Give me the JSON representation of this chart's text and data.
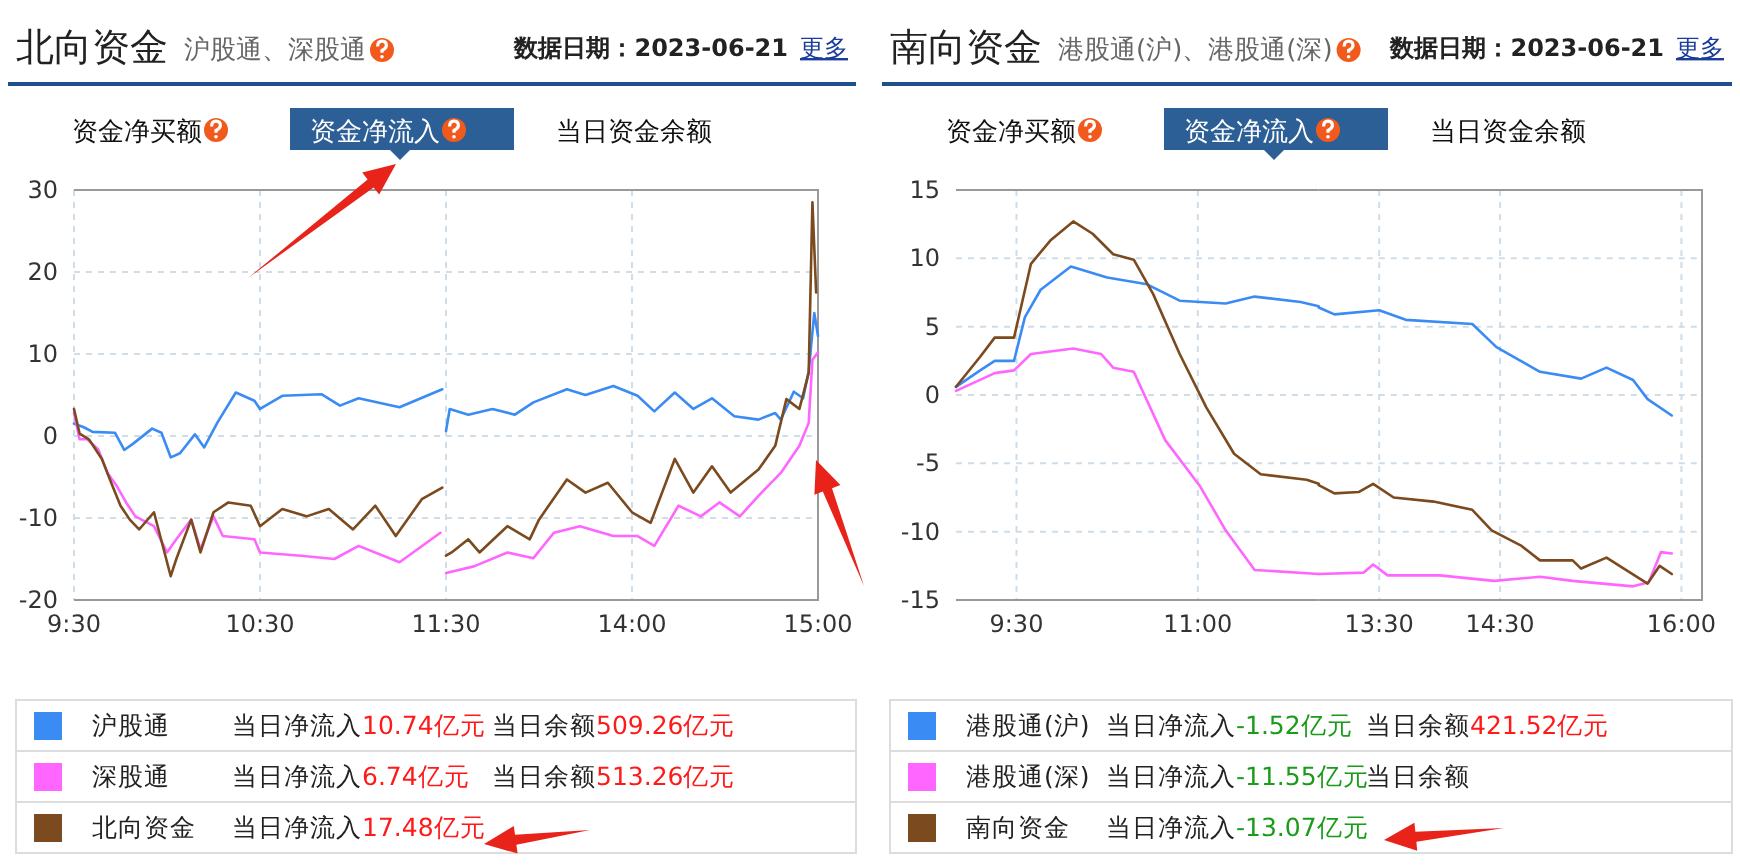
{
  "chart_data": [
    {
      "type": "line",
      "title": "北向资金",
      "subtitle": "沪股通、深股通",
      "annotations": [
        "数据日期：2023-06-21",
        "更多",
        "资金净买额",
        "资金净流入",
        "当日资金余额",
        "当日净流入10.74亿元",
        "当日余额509.26亿元",
        "当日净流入6.74亿元",
        "当日余额513.26亿元",
        "当日净流入17.48亿元"
      ],
      "xlim": [
        9.5,
        11.5
      ],
      "xticks": [
        {
          "value": 9.5,
          "label": "9:30"
        },
        {
          "value": 10.5,
          "label": "10:30"
        },
        {
          "value": 11.5,
          "label": "11:30"
        }
      ],
      "ylim": [
        -20,
        30
      ],
      "yticks": [
        -20,
        -10,
        0,
        10,
        20,
        30
      ],
      "grid": true,
      "legend": "bottom",
      "marker": "none",
      "line_style": "solid",
      "series": [
        {
          "name": "沪股通",
          "color": "#3b8bf5",
          "x": [
            9.5,
            9.55,
            9.6,
            9.72,
            9.77,
            9.82,
            9.92,
            9.97,
            10.02,
            10.07,
            10.15,
            10.2,
            10.27,
            10.37,
            10.47,
            10.5,
            10.62,
            10.83,
            10.93,
            11.03,
            11.25,
            11.48
          ],
          "values": [
            1.5,
            1.1,
            0.5,
            0.4,
            -1.7,
            -0.9,
            0.9,
            0.4,
            -2.6,
            -2.1,
            0.2,
            -1.4,
            1.6,
            5.3,
            4.3,
            3.3,
            4.9,
            5.1,
            3.7,
            4.6,
            3.5,
            5.7
          ]
        },
        {
          "name": "深股通",
          "color": "#ff66ff",
          "x": [
            9.5,
            9.53,
            9.57,
            9.63,
            9.68,
            9.73,
            9.78,
            9.83,
            9.93,
            10.0,
            10.05,
            10.13,
            10.18,
            10.25,
            10.3,
            10.47,
            10.5,
            10.72,
            10.9,
            11.03,
            11.25,
            11.47
          ],
          "values": [
            2.8,
            -0.4,
            -0.4,
            -1.6,
            -4.5,
            -6.1,
            -8.1,
            -9.8,
            -11,
            -14.2,
            -12.6,
            -10.2,
            -13.8,
            -9.8,
            -12.2,
            -12.6,
            -14.2,
            -14.6,
            -15.0,
            -13.4,
            -15.4,
            -11.8
          ]
        },
        {
          "name": "北向资金",
          "color": "#7b4a1e",
          "x": [
            9.5,
            9.53,
            9.58,
            9.65,
            9.7,
            9.75,
            9.8,
            9.85,
            9.93,
            10.02,
            10.05,
            10.13,
            10.18,
            10.25,
            10.33,
            10.45,
            10.5,
            10.62,
            10.75,
            10.87,
            11.0,
            11.12,
            11.23,
            11.37,
            11.48
          ],
          "values": [
            3.3,
            0.3,
            -0.4,
            -2.8,
            -5.7,
            -8.5,
            -10.2,
            -11.4,
            -9.3,
            -17.1,
            -15.0,
            -10.2,
            -14.2,
            -9.3,
            -8.1,
            -8.5,
            -11.0,
            -8.9,
            -9.8,
            -8.9,
            -11.4,
            -8.5,
            -12.2,
            -7.7,
            -6.3
          ]
        }
      ]
    },
    {
      "type": "line",
      "tick_labels": "x",
      "xlim": [
        13,
        15
      ],
      "xticks": [
        {
          "value": 14,
          "label": "14:00"
        },
        {
          "value": 15,
          "label": "15:00"
        }
      ],
      "ylim": [
        -20,
        30
      ],
      "yticks": [
        -20,
        -10,
        0,
        10,
        20,
        30
      ],
      "grid": true,
      "marker": "none",
      "line_style": "solid",
      "series": [
        {
          "color": "#3b8bf5",
          "x": [
            13.0,
            13.02,
            13.12,
            13.25,
            13.37,
            13.47,
            13.65,
            13.75,
            13.9,
            14.03,
            14.12,
            14.23,
            14.33,
            14.43,
            14.55,
            14.68,
            14.77,
            14.8,
            14.87,
            14.92,
            14.95,
            14.98,
            15.0
          ],
          "values": [
            0.6,
            3.3,
            2.6,
            3.3,
            2.6,
            4.1,
            5.7,
            5.0,
            6.1,
            4.9,
            3.0,
            5.3,
            3.3,
            4.6,
            2.4,
            2.0,
            2.8,
            2.0,
            5.4,
            4.6,
            7.9,
            15.0,
            12.2
          ]
        },
        {
          "color": "#ff66ff",
          "x": [
            13.0,
            13.15,
            13.33,
            13.47,
            13.58,
            13.72,
            13.9,
            14.03,
            14.12,
            14.25,
            14.37,
            14.47,
            14.58,
            14.68,
            14.8,
            14.9,
            14.95,
            14.97,
            15.0
          ],
          "values": [
            -16.7,
            -15.9,
            -14.2,
            -14.9,
            -11.8,
            -11.0,
            -12.2,
            -12.2,
            -13.4,
            -8.5,
            -9.8,
            -8.1,
            -9.8,
            -7.3,
            -4.5,
            -1.2,
            1.6,
            9.3,
            10.2
          ]
        },
        {
          "color": "#7b4a1e",
          "x": [
            13.0,
            13.03,
            13.12,
            13.18,
            13.33,
            13.45,
            13.5,
            13.65,
            13.75,
            13.87,
            14.0,
            14.1,
            14.23,
            14.33,
            14.43,
            14.53,
            14.68,
            14.77,
            14.83,
            14.9,
            14.95,
            14.97,
            14.99
          ],
          "values": [
            -14.6,
            -14.2,
            -12.6,
            -14.2,
            -11.0,
            -12.6,
            -10.2,
            -5.3,
            -6.9,
            -5.7,
            -9.3,
            -10.6,
            -2.8,
            -6.9,
            -3.7,
            -6.9,
            -4.1,
            -1.2,
            4.5,
            3.3,
            7.7,
            28.5,
            17.5
          ]
        }
      ]
    },
    {
      "type": "line",
      "title": "南向资金",
      "subtitle": "港股通(沪)、港股通(深)",
      "annotations": [
        "数据日期：2023-06-21",
        "更多",
        "资金净买额",
        "资金净流入",
        "当日资金余额",
        "当日净流入-1.52亿元",
        "当日余额421.52亿元",
        "当日净流入-11.55亿元",
        "当日余额",
        "当日净流入-13.07亿元"
      ],
      "xlim": [
        9.0,
        12.0
      ],
      "xticks": [
        {
          "value": 9.5,
          "label": "9:30"
        },
        {
          "value": 11,
          "label": "11:00"
        }
      ],
      "ylim": [
        -15,
        15
      ],
      "yticks": [
        -15,
        -10,
        -5,
        0,
        5,
        10,
        15
      ],
      "grid": true,
      "legend": "bottom",
      "marker": "none",
      "line_style": "solid",
      "series": [
        {
          "name": "港股通(沪)",
          "color": "#3b8bf5",
          "x": [
            9.0,
            9.2,
            9.32,
            9.48,
            9.57,
            9.7,
            9.95,
            10.25,
            10.58,
            10.85,
            11.23,
            11.47,
            11.85,
            12.0
          ],
          "values": [
            0.6,
            1.8,
            2.5,
            2.5,
            5.7,
            7.7,
            9.4,
            8.6,
            8.1,
            6.9,
            6.7,
            7.2,
            6.8,
            6.5
          ]
        },
        {
          "name": "港股通(深)",
          "color": "#ff66ff",
          "x": [
            9.0,
            9.32,
            9.48,
            9.62,
            9.97,
            10.2,
            10.3,
            10.47,
            10.73,
            11.02,
            11.23,
            11.47,
            12.0
          ],
          "values": [
            0.3,
            1.6,
            1.8,
            3.0,
            3.4,
            3.0,
            2.0,
            1.7,
            -3.3,
            -6.7,
            -9.9,
            -12.8,
            -13.1
          ]
        },
        {
          "name": "南向资金",
          "color": "#7b4a1e",
          "x": [
            9.0,
            9.2,
            9.32,
            9.48,
            9.62,
            9.78,
            9.97,
            10.13,
            10.3,
            10.47,
            10.63,
            10.85,
            11.07,
            11.3,
            11.52,
            11.9,
            12.0
          ],
          "values": [
            0.6,
            2.8,
            4.2,
            4.2,
            9.6,
            11.3,
            12.7,
            11.8,
            10.3,
            9.9,
            7.4,
            3.0,
            -0.9,
            -4.3,
            -5.8,
            -6.2,
            -6.5
          ]
        }
      ]
    },
    {
      "type": "line",
      "tick_labels": "x",
      "xlim": [
        13.0,
        16.17
      ],
      "xticks": [
        {
          "value": 13.5,
          "label": "13:30"
        },
        {
          "value": 14.5,
          "label": "14:30"
        },
        {
          "value": 16,
          "label": "16:00"
        }
      ],
      "ylim": [
        -15,
        15
      ],
      "yticks": [
        -15,
        -10,
        -5,
        0,
        5,
        10,
        15
      ],
      "grid": true,
      "marker": "none",
      "line_style": "solid",
      "series": [
        {
          "color": "#3b8bf5",
          "x": [
            13.0,
            13.13,
            13.5,
            13.72,
            14.27,
            14.47,
            14.67,
            14.83,
            15.17,
            15.38,
            15.6,
            15.72,
            15.92
          ],
          "values": [
            6.4,
            5.9,
            6.2,
            5.5,
            5.2,
            3.5,
            2.5,
            1.7,
            1.2,
            2.0,
            1.1,
            -0.3,
            -1.5
          ]
        },
        {
          "color": "#ff66ff",
          "x": [
            13.0,
            13.37,
            13.45,
            13.57,
            14.0,
            14.45,
            14.83,
            15.1,
            15.6,
            15.73,
            15.83,
            15.92
          ],
          "values": [
            -13.1,
            -13.0,
            -12.4,
            -13.2,
            -13.2,
            -13.6,
            -13.3,
            -13.6,
            -14.0,
            -13.7,
            -11.5,
            -11.6
          ]
        },
        {
          "color": "#7b4a1e",
          "x": [
            13.0,
            13.13,
            13.33,
            13.45,
            13.62,
            13.95,
            14.27,
            14.43,
            14.67,
            14.83,
            15.1,
            15.17,
            15.38,
            15.72,
            15.82,
            15.92
          ],
          "values": [
            -6.6,
            -7.2,
            -7.1,
            -6.5,
            -7.5,
            -7.8,
            -8.4,
            -9.9,
            -11.0,
            -12.1,
            -12.1,
            -12.7,
            -11.9,
            -13.8,
            -12.5,
            -13.1
          ]
        }
      ]
    }
  ]
}
